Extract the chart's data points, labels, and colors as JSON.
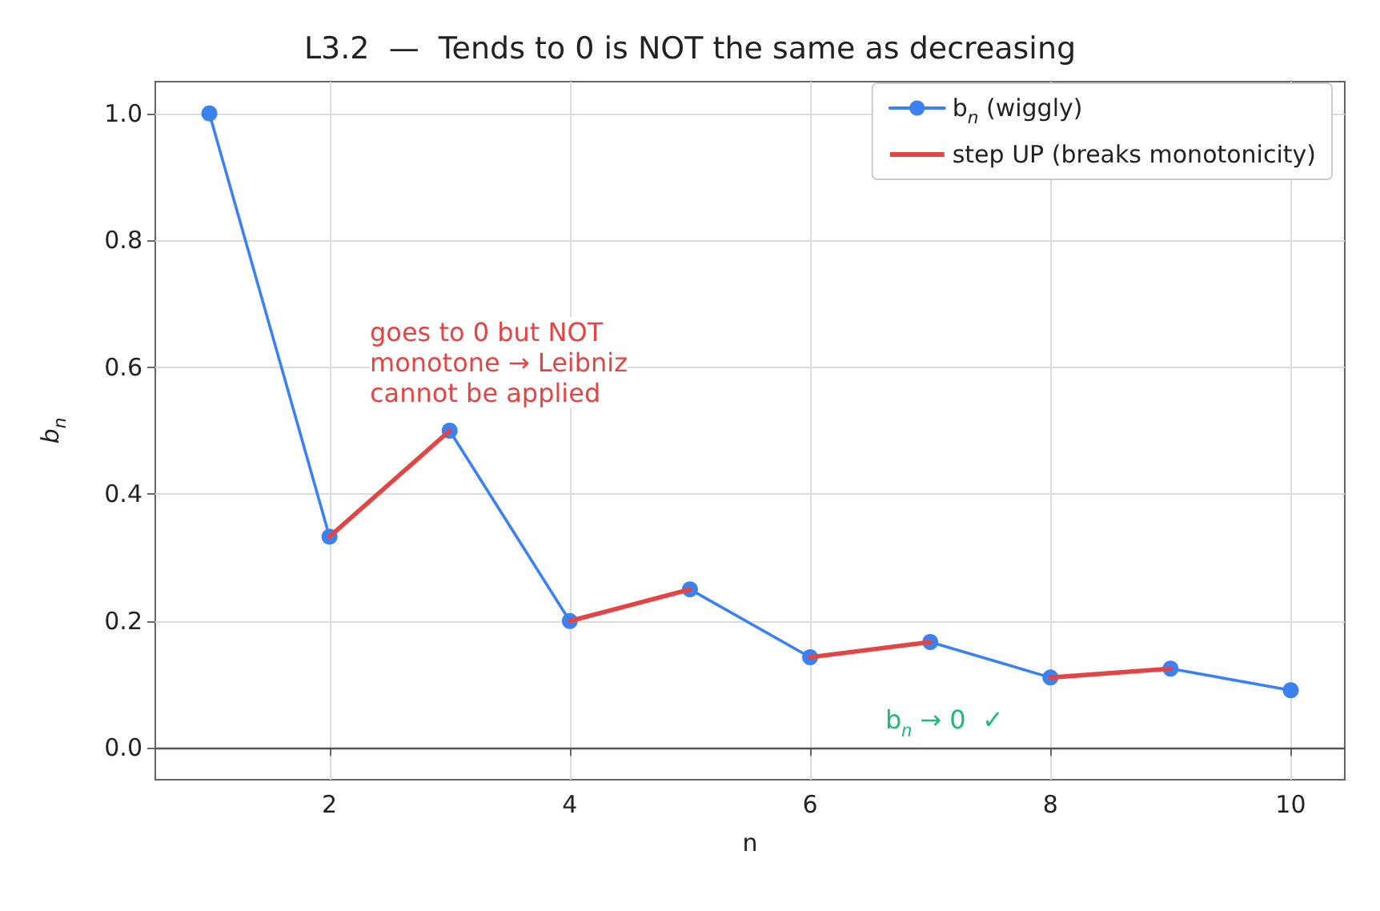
{
  "chart_data": {
    "type": "line",
    "title": "L3.2  —  Tends to 0 is NOT the same as decreasing",
    "xlabel": "n",
    "ylabel": "b$_{n}$",
    "x": [
      1,
      2,
      3,
      4,
      5,
      6,
      7,
      8,
      9,
      10
    ],
    "series": [
      {
        "name": "b$_{n}$ (wiggly)",
        "color": "#3b82f0",
        "values": [
          1.0,
          0.333,
          0.5,
          0.2,
          0.25,
          0.143,
          0.167,
          0.111,
          0.125,
          0.091
        ],
        "marker": "circle"
      },
      {
        "name": "step UP (breaks monotonicity)",
        "color": "#e34545",
        "x": [
          2,
          3,
          3.5,
          4,
          5,
          5.5,
          6,
          7,
          7.5,
          8,
          9
        ],
        "values": [
          0.333,
          0.5,
          null,
          0.2,
          0.25,
          null,
          0.143,
          0.167,
          null,
          0.111,
          0.125
        ],
        "marker": "none"
      }
    ],
    "xlim": [
      0.55,
      10.45
    ],
    "xticks": [
      2,
      4,
      6,
      8,
      10
    ],
    "ylim": [
      -0.05,
      1.05
    ],
    "yticks": [
      {
        "value": 0,
        "label": "0.0"
      },
      0.2,
      0.4,
      0.6,
      0.8,
      {
        "value": 1,
        "label": "1.0"
      }
    ],
    "ref_lines": [
      {
        "axis": "y",
        "value": 0,
        "color": "#555555"
      }
    ],
    "annotations": [
      "goes to 0 but NOT\nmonotone → Leibniz\ncannot be applied",
      "b$_{n}$ → 0  ✓"
    ],
    "grid": true,
    "legend": "top right"
  }
}
